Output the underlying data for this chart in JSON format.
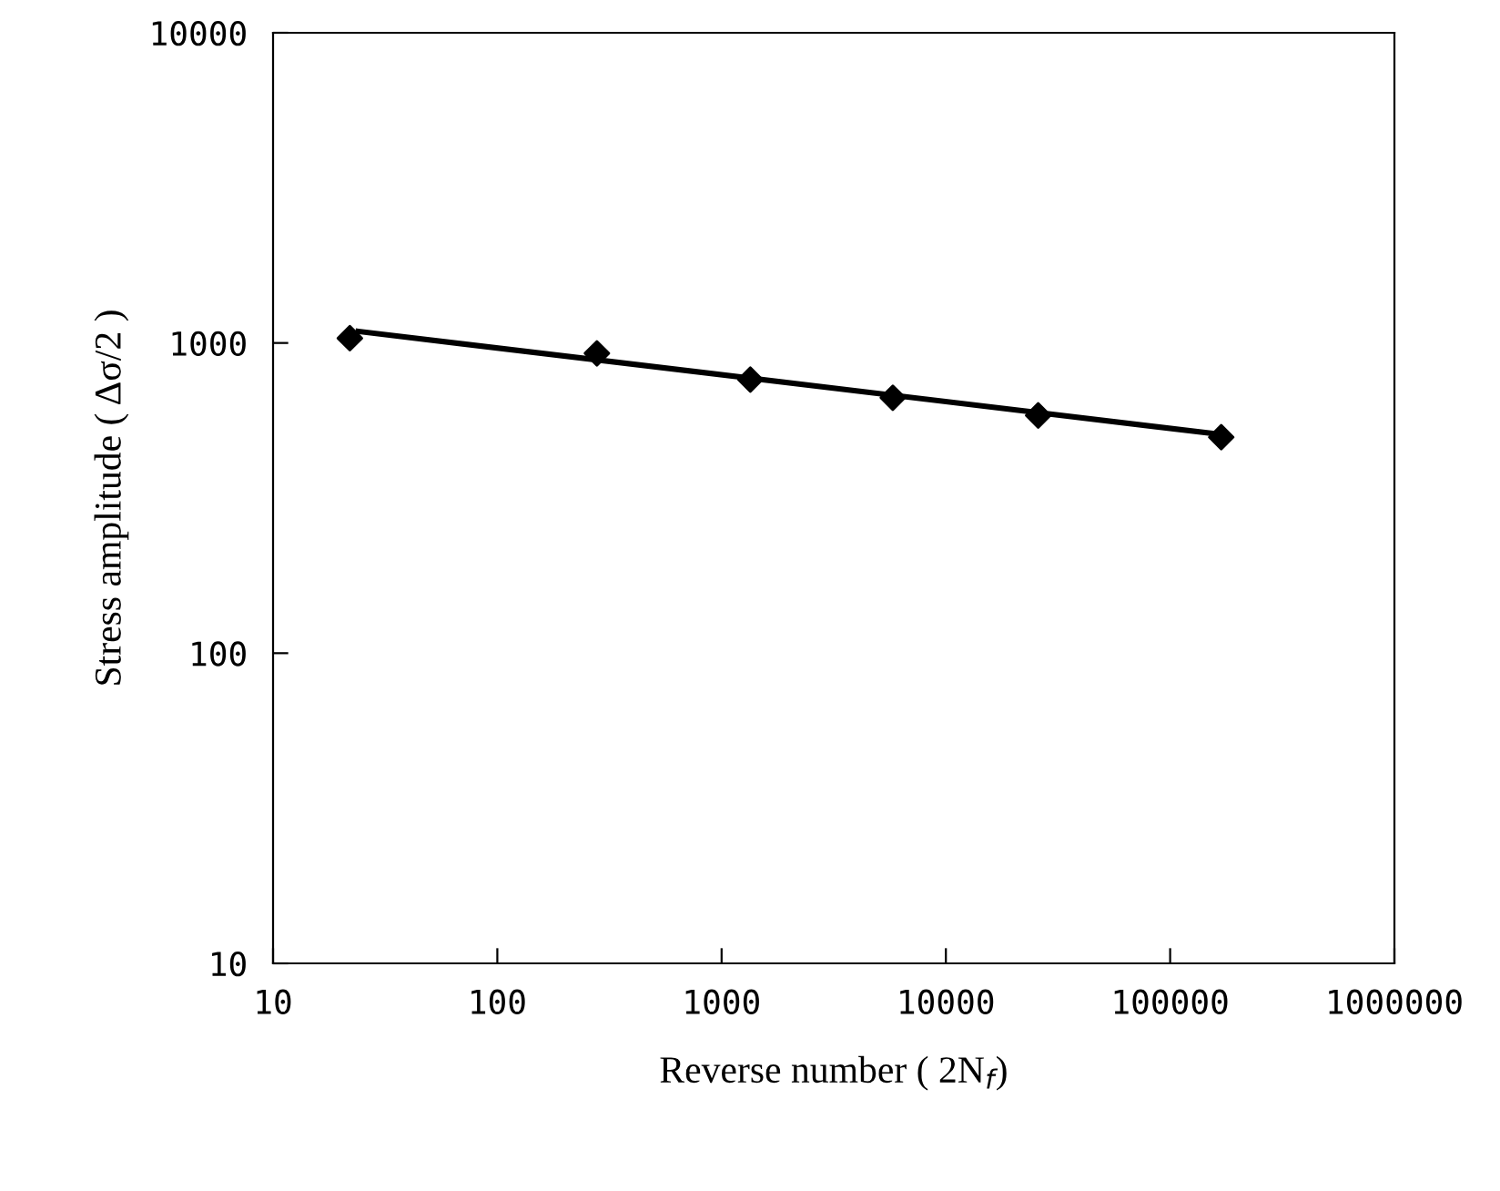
{
  "chart_data": {
    "type": "scatter",
    "xlabel": "Reverse number ( 2N$_{f}$)",
    "ylabel": "Stress amplitude ( Δσ/2 )",
    "log": "xy",
    "xlim": [
      10,
      1000000
    ],
    "ylim": [
      10,
      10000
    ],
    "xticks": [
      10,
      100,
      1000,
      10000,
      100000,
      1000000
    ],
    "yticks": [
      10,
      100,
      1000,
      10000
    ],
    "grid": false,
    "legend": false,
    "marker": "diamond",
    "series": [
      {
        "color": "#000000",
        "x": [
          22,
          278,
          1343,
          5800,
          25800,
          169000
        ],
        "values": [
          1036,
          926,
          762,
          666,
          584,
          497
        ]
      },
      {
        "type": "line",
        "color": "#000000",
        "marker": "none",
        "line_style": "solid",
        "x": [
          24,
          169000
        ],
        "values": [
          1090,
          507
        ]
      }
    ]
  }
}
